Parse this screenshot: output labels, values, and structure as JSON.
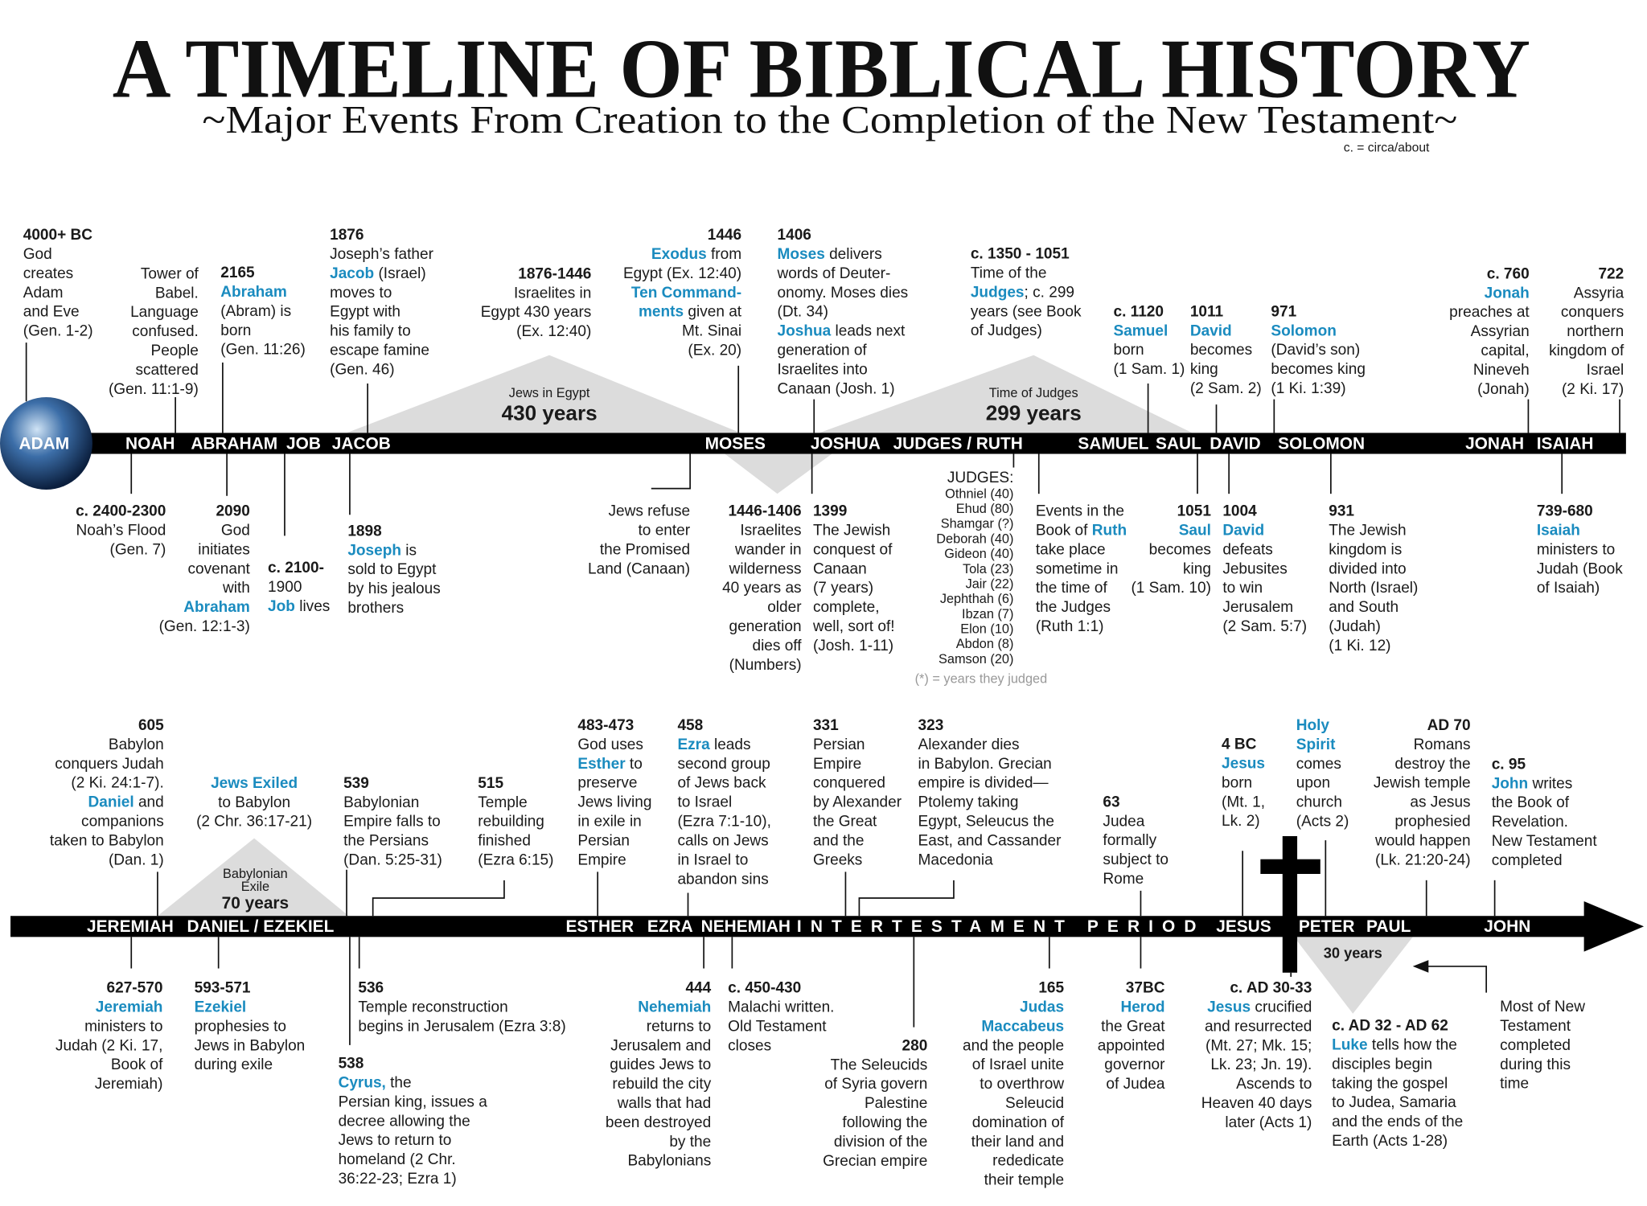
{
  "header": {
    "title": "A TIMELINE OF BIBLICAL HISTORY",
    "subtitle": "~Major Events From Creation to the Completion of the New Testament~",
    "note": "c. = circa/about"
  },
  "timeline1": {
    "bar_labels": [
      "ADAM",
      "NOAH",
      "ABRAHAM",
      "JOB",
      "JACOB",
      "MOSES",
      "JOSHUA",
      "JUDGES / RUTH",
      "SAMUEL",
      "SAUL",
      "DAVID",
      "SOLOMON",
      "JONAH",
      "ISAIAH"
    ],
    "spans": [
      {
        "label": "Jews in Egypt",
        "duration": "430 years"
      },
      {
        "label": "Time of Judges",
        "duration": "299 years"
      }
    ],
    "above": [
      {
        "date": "4000+ BC",
        "lines": [
          "God",
          "creates",
          "Adam",
          "and Eve",
          "(Gen. 1-2)"
        ]
      },
      {
        "lines": [
          "Tower of",
          "Babel.",
          "Language",
          "confused.",
          "People",
          "scattered",
          "(Gen. 11:1-9)"
        ]
      },
      {
        "date": "2165",
        "lines": [
          [
            {
              "hl": "Abraham"
            }
          ],
          "(Abram) is",
          "born",
          "(Gen. 11:26)"
        ]
      },
      {
        "date": "1876",
        "lines": [
          "Joseph’s father",
          [
            {
              "hl": "Jacob"
            },
            " (Israel)"
          ],
          "moves to",
          "Egypt with",
          "his family to",
          "escape famine",
          "(Gen. 46)"
        ]
      },
      {
        "date": "1876-1446",
        "lines": [
          "Israelites in",
          "Egypt 430 years",
          "(Ex. 12:40)"
        ]
      },
      {
        "date": "1446",
        "lines": [
          [
            {
              "hl": "Exodus"
            },
            " from"
          ],
          "Egypt (Ex. 12:40)",
          [
            {
              "hl": "Ten Command-"
            }
          ],
          [
            {
              "hl": "ments"
            },
            " given at"
          ],
          "Mt. Sinai",
          "(Ex. 20)"
        ]
      },
      {
        "date": "1406",
        "lines": [
          [
            {
              "hl": "Moses"
            },
            " delivers"
          ],
          "words of Deuter-",
          "onomy. Moses dies",
          "(Dt. 34)",
          [
            {
              "hl": "Joshua"
            },
            " leads next"
          ],
          "generation of",
          "Israelites into",
          "Canaan (Josh. 1)"
        ]
      },
      {
        "date": "c. 1350 - 1051",
        "lines": [
          "Time of the",
          [
            {
              "hl": "Judges"
            },
            "; c. 299"
          ],
          "years (see Book",
          "of Judges)"
        ]
      },
      {
        "date": "c. 1120",
        "lines": [
          [
            {
              "hl": "Samuel"
            }
          ],
          "born",
          "(1 Sam. 1)"
        ]
      },
      {
        "date": "1011",
        "lines": [
          [
            {
              "hl": "David"
            }
          ],
          "becomes",
          "king",
          "(2 Sam. 2)"
        ]
      },
      {
        "date": "971",
        "lines": [
          [
            {
              "hl": "Solomon"
            }
          ],
          "(David’s son)",
          "becomes king",
          "(1 Ki. 1:39)"
        ]
      },
      {
        "date": "c. 760",
        "lines": [
          [
            {
              "hl": "Jonah"
            }
          ],
          "preaches at",
          "Assyrian",
          "capital,",
          "Nineveh",
          "(Jonah)"
        ]
      },
      {
        "date": "722",
        "lines": [
          "Assyria",
          "conquers",
          "northern",
          "kingdom of",
          "Israel",
          "(2 Ki. 17)"
        ]
      }
    ],
    "below": [
      {
        "date": "c. 2400-2300",
        "lines": [
          "Noah’s Flood",
          "(Gen. 7)"
        ]
      },
      {
        "date": "2090",
        "lines": [
          "God",
          "initiates",
          "covenant",
          "with",
          [
            {
              "hl": "Abraham"
            }
          ],
          "(Gen. 12:1-3)"
        ]
      },
      {
        "date": "c. 2100-",
        "lines": [
          [
            "1900"
          ],
          [
            {
              "hl": "Job"
            },
            " lives"
          ]
        ]
      },
      {
        "date": "1898",
        "lines": [
          [
            {
              "hl": "Joseph"
            },
            " is"
          ],
          "sold to Egypt",
          "by his jealous",
          "brothers"
        ]
      },
      {
        "lines": [
          "Jews refuse",
          "to enter",
          "the Promised",
          "Land (Canaan)"
        ]
      },
      {
        "date": "1446-1406",
        "lines": [
          "Israelites",
          "wander in",
          "wilderness",
          "40 years as",
          "older",
          "generation",
          "dies off",
          "(Numbers)"
        ]
      },
      {
        "date": "1399",
        "lines": [
          "The Jewish",
          "conquest of",
          "Canaan",
          "(7 years)",
          "complete,",
          "well, sort of!",
          "(Josh. 1-11)"
        ]
      },
      {
        "lines": [
          "Events in the",
          [
            "Book of ",
            {
              "hl": "Ruth"
            }
          ],
          "take place",
          "sometime in",
          "the time of",
          "the Judges",
          "(Ruth 1:1)"
        ]
      },
      {
        "date": "1051",
        "lines": [
          [
            {
              "hl": "Saul"
            }
          ],
          "becomes",
          "king",
          "(1 Sam. 10)"
        ]
      },
      {
        "date": "1004",
        "lines": [
          [
            {
              "hl": "David"
            }
          ],
          "defeats",
          "Jebusites",
          "to win",
          "Jerusalem",
          "(2 Sam. 5:7)"
        ]
      },
      {
        "date": "931",
        "lines": [
          "The Jewish",
          "kingdom is",
          "divided into",
          "North (Israel)",
          "and South",
          "(Judah)",
          "(1 Ki. 12)"
        ]
      },
      {
        "date": "739-680",
        "lines": [
          [
            {
              "hl": "Isaiah"
            }
          ],
          "ministers to",
          "Judah (Book",
          "of Isaiah)"
        ]
      }
    ],
    "judges": {
      "heading": "JUDGES:",
      "names": [
        "Othniel (40)",
        "Ehud (80)",
        "Shamgar (?)",
        "Deborah (40)",
        "Gideon (40)",
        "Tola (23)",
        "Jair (22)",
        "Jephthah (6)",
        "Ibzan (7)",
        "Elon (10)",
        "Abdon (8)",
        "Samson (20)"
      ],
      "note": "(*) = years they judged"
    }
  },
  "timeline2": {
    "bar_labels": [
      "JEREMIAH",
      "DANIEL / EZEKIEL",
      "ESTHER",
      "EZRA",
      "NEHEMIAH",
      "INTERTESTAMENT PERIOD",
      "JESUS",
      "PETER",
      "PAUL",
      "JOHN"
    ],
    "spans": [
      {
        "label_lines": [
          "Babylonian",
          "Exile"
        ],
        "duration": "70 years"
      },
      {
        "duration": "30 years"
      }
    ],
    "above": [
      {
        "date": "605",
        "lines": [
          "Babylon",
          "conquers Judah",
          "(2 Ki. 24:1-7).",
          [
            {
              "hl": "Daniel"
            },
            " and"
          ],
          "companions",
          "taken to Babylon",
          "(Dan. 1)"
        ]
      },
      {
        "lines": [
          [
            {
              "hl": "Jews Exiled"
            }
          ],
          "to Babylon",
          "(2 Chr. 36:17-21)"
        ]
      },
      {
        "date": "539",
        "lines": [
          "Babylonian",
          "Empire falls to",
          "the Persians",
          "(Dan. 5:25-31)"
        ]
      },
      {
        "date": "515",
        "lines": [
          "Temple",
          "rebuilding",
          "finished",
          "(Ezra 6:15)"
        ]
      },
      {
        "date": "483-473",
        "lines": [
          "God uses",
          [
            {
              "hl": "Esther"
            },
            " to"
          ],
          "preserve",
          "Jews living",
          "in exile in",
          "Persian",
          "Empire"
        ]
      },
      {
        "date": "458",
        "lines": [
          [
            {
              "hl": "Ezra"
            },
            " leads"
          ],
          "second group",
          "of Jews back",
          "to Israel",
          "(Ezra 7:1-10),",
          "calls on Jews",
          "in Israel to",
          "abandon sins"
        ]
      },
      {
        "date": "331",
        "lines": [
          "Persian",
          "Empire",
          "conquered",
          "by Alexander",
          "the Great",
          "and the",
          "Greeks"
        ]
      },
      {
        "date": "323",
        "lines": [
          "Alexander dies",
          "in Babylon. Grecian",
          "empire is divided—",
          "Ptolemy taking",
          "Egypt, Seleucus the",
          "East, and Cassander",
          "Macedonia"
        ]
      },
      {
        "date": "63",
        "lines": [
          "Judea",
          "formally",
          "subject to",
          "Rome"
        ]
      },
      {
        "date": "4 BC",
        "lines": [
          [
            {
              "hl": "Jesus"
            }
          ],
          "born",
          "(Mt. 1,",
          "Lk. 2)"
        ]
      },
      {
        "lines": [
          [
            {
              "hl": "Holy"
            }
          ],
          [
            {
              "hl": "Spirit"
            }
          ],
          "comes",
          "upon",
          "church",
          "(Acts 2)"
        ]
      },
      {
        "date": "AD 70",
        "lines": [
          "Romans",
          "destroy the",
          "Jewish temple",
          "as Jesus",
          "prophesied",
          "would happen",
          "(Lk. 21:20-24)"
        ]
      },
      {
        "date": "c. 95",
        "lines": [
          [
            {
              "hl": "John"
            },
            " writes"
          ],
          "the Book of",
          "Revelation.",
          "New Testament",
          "completed"
        ]
      }
    ],
    "below": [
      {
        "date": "627-570",
        "lines": [
          [
            {
              "hl": "Jeremiah"
            }
          ],
          "ministers to",
          "Judah (2 Ki. 17,",
          "Book of",
          "Jeremiah)"
        ]
      },
      {
        "date": "593-571",
        "lines": [
          [
            {
              "hl": "Ezekiel"
            }
          ],
          "prophesies to",
          "Jews in Babylon",
          "during exile"
        ]
      },
      {
        "date": "536",
        "lines": [
          "Temple reconstruction",
          "begins in Jerusalem (Ezra 3:8)"
        ]
      },
      {
        "date": "538",
        "lines": [
          [
            {
              "hl": "Cyrus,"
            },
            " the"
          ],
          "Persian king, issues a",
          "decree allowing the",
          "Jews to return to",
          "homeland (2 Chr.",
          "36:22-23; Ezra 1)"
        ]
      },
      {
        "date": "444",
        "lines": [
          [
            {
              "hl": "Nehemiah"
            }
          ],
          "returns to",
          "Jerusalem and",
          "guides Jews to",
          "rebuild the city",
          "walls that had",
          "been destroyed",
          "by the",
          "Babylonians"
        ]
      },
      {
        "date": "c. 450-430",
        "lines": [
          "Malachi written.",
          "Old Testament",
          "closes"
        ]
      },
      {
        "date": "280",
        "lines": [
          "The Seleucids",
          "of Syria govern",
          "Palestine",
          "following the",
          "division of the",
          "Grecian empire"
        ]
      },
      {
        "date": "165",
        "lines": [
          [
            {
              "hl": "Judas"
            }
          ],
          [
            {
              "hl": "Maccabeus"
            }
          ],
          "and the people",
          "of Israel unite",
          "to overthrow",
          "Seleucid",
          "domination of",
          "their land and",
          "rededicate",
          "their temple"
        ]
      },
      {
        "date": "37BC",
        "lines": [
          [
            {
              "hl": "Herod"
            }
          ],
          "the Great",
          "appointed",
          "governor",
          "of Judea"
        ]
      },
      {
        "date": "c. AD 30-33",
        "lines": [
          [
            {
              "hl": "Jesus"
            },
            " crucified"
          ],
          "and resurrected",
          "(Mt. 27; Mk. 15;",
          "Lk. 23; Jn. 19).",
          "Ascends to",
          "Heaven 40 days",
          "later (Acts 1)"
        ]
      },
      {
        "date": "c. AD 32 - AD 62",
        "lines": [
          [
            {
              "hl": "Luke"
            },
            " tells how the"
          ],
          "disciples begin",
          "taking the gospel",
          "to Judea, Samaria",
          "and the ends of the",
          "Earth (Acts 1-28)"
        ]
      },
      {
        "lines": [
          "Most of New",
          "Testament",
          "completed",
          "during this",
          "time"
        ]
      }
    ]
  }
}
